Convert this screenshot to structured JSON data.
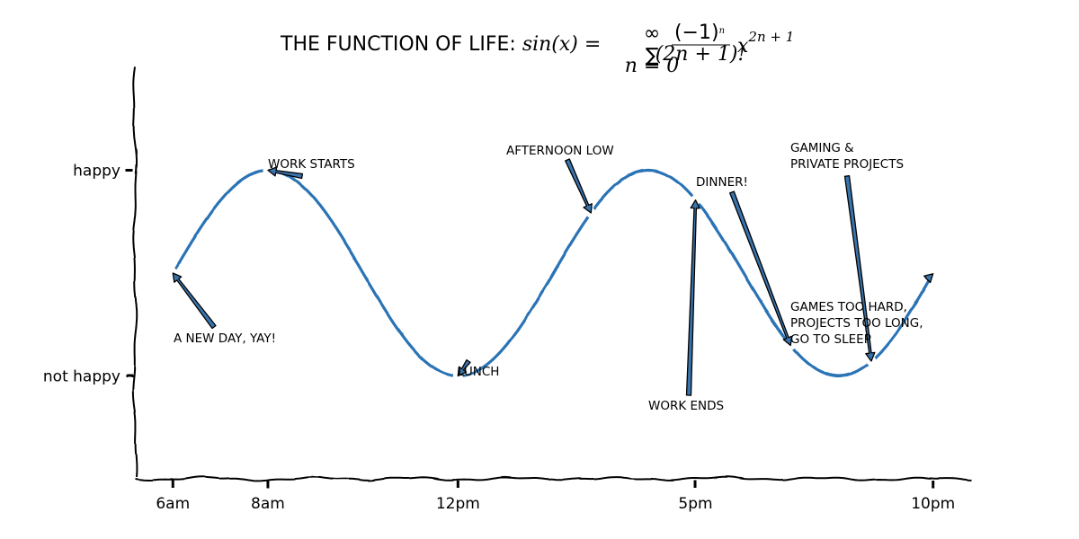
{
  "chart_data": {
    "type": "line",
    "title": {
      "prefix": "THE FUNCTION OF LIFE: ",
      "formula_lhs": "sin(x) = ",
      "sum_top": "∞",
      "sum_symbol": "∑",
      "sum_bottom": "n = 0",
      "frac_num": "(−1)",
      "frac_num_exp": "n",
      "frac_den": "(2n + 1)!",
      "term_var": "x",
      "term_exp": "2n + 1"
    },
    "xlabel": "",
    "ylabel": "",
    "xlim": [
      5.2,
      22.8
    ],
    "ylim": [
      -2,
      2
    ],
    "x_ticks": [
      {
        "value": 6,
        "label": "6am"
      },
      {
        "value": 8,
        "label": "8am"
      },
      {
        "value": 12,
        "label": "12pm"
      },
      {
        "value": 17,
        "label": "5pm"
      },
      {
        "value": 22,
        "label": "10pm"
      }
    ],
    "y_ticks": [
      {
        "value": 1,
        "label": "happy"
      },
      {
        "value": -1,
        "label": "not happy"
      }
    ],
    "series": [
      {
        "formula": "sin((x - 6) * 0.785)",
        "x_start": 6,
        "x_end": 22,
        "color": "#2a73b5"
      }
    ],
    "annotations": [
      {
        "x": 6,
        "lines": [
          "A NEW DAY, YAY!"
        ]
      },
      {
        "x": 8,
        "lines": [
          "WORK STARTS"
        ]
      },
      {
        "x": 12,
        "lines": [
          "LUNCH"
        ]
      },
      {
        "x": 14.8,
        "lines": [
          "AFTERNOON LOW"
        ]
      },
      {
        "x": 17,
        "lines": [
          "WORK ENDS"
        ]
      },
      {
        "x": 19,
        "lines": [
          "DINNER!"
        ]
      },
      {
        "x": 20.7,
        "lines": [
          "GAMING &",
          "PRIVATE PROJECTS"
        ]
      },
      {
        "x": 22,
        "lines": [
          "GAMES TOO HARD,",
          "PROJECTS TOO LONG,",
          "GO TO SLEEP"
        ]
      }
    ],
    "grid": false,
    "style": "xkcd"
  }
}
